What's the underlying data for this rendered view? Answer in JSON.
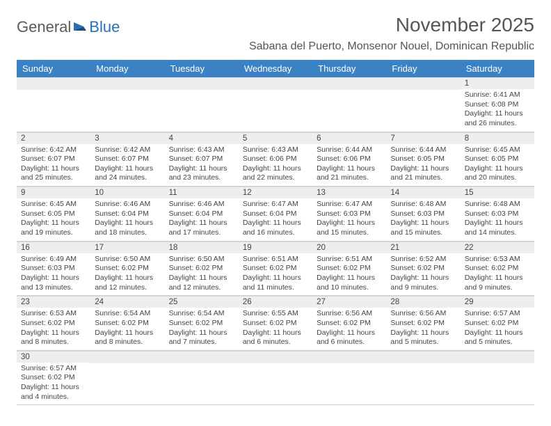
{
  "logo": {
    "text1": "General",
    "text2": "Blue"
  },
  "title": "November 2025",
  "location": "Sabana del Puerto, Monsenor Nouel, Dominican Republic",
  "colors": {
    "header_bg": "#3b82c4",
    "header_fg": "#ffffff",
    "daynum_bg": "#eeeeee",
    "text": "#444444",
    "border": "#d0d0d0"
  },
  "day_names": [
    "Sunday",
    "Monday",
    "Tuesday",
    "Wednesday",
    "Thursday",
    "Friday",
    "Saturday"
  ],
  "weeks": [
    [
      {
        "day": "",
        "lines": []
      },
      {
        "day": "",
        "lines": []
      },
      {
        "day": "",
        "lines": []
      },
      {
        "day": "",
        "lines": []
      },
      {
        "day": "",
        "lines": []
      },
      {
        "day": "",
        "lines": []
      },
      {
        "day": "1",
        "lines": [
          "Sunrise: 6:41 AM",
          "Sunset: 6:08 PM",
          "Daylight: 11 hours and 26 minutes."
        ]
      }
    ],
    [
      {
        "day": "2",
        "lines": [
          "Sunrise: 6:42 AM",
          "Sunset: 6:07 PM",
          "Daylight: 11 hours and 25 minutes."
        ]
      },
      {
        "day": "3",
        "lines": [
          "Sunrise: 6:42 AM",
          "Sunset: 6:07 PM",
          "Daylight: 11 hours and 24 minutes."
        ]
      },
      {
        "day": "4",
        "lines": [
          "Sunrise: 6:43 AM",
          "Sunset: 6:07 PM",
          "Daylight: 11 hours and 23 minutes."
        ]
      },
      {
        "day": "5",
        "lines": [
          "Sunrise: 6:43 AM",
          "Sunset: 6:06 PM",
          "Daylight: 11 hours and 22 minutes."
        ]
      },
      {
        "day": "6",
        "lines": [
          "Sunrise: 6:44 AM",
          "Sunset: 6:06 PM",
          "Daylight: 11 hours and 21 minutes."
        ]
      },
      {
        "day": "7",
        "lines": [
          "Sunrise: 6:44 AM",
          "Sunset: 6:05 PM",
          "Daylight: 11 hours and 21 minutes."
        ]
      },
      {
        "day": "8",
        "lines": [
          "Sunrise: 6:45 AM",
          "Sunset: 6:05 PM",
          "Daylight: 11 hours and 20 minutes."
        ]
      }
    ],
    [
      {
        "day": "9",
        "lines": [
          "Sunrise: 6:45 AM",
          "Sunset: 6:05 PM",
          "Daylight: 11 hours and 19 minutes."
        ]
      },
      {
        "day": "10",
        "lines": [
          "Sunrise: 6:46 AM",
          "Sunset: 6:04 PM",
          "Daylight: 11 hours and 18 minutes."
        ]
      },
      {
        "day": "11",
        "lines": [
          "Sunrise: 6:46 AM",
          "Sunset: 6:04 PM",
          "Daylight: 11 hours and 17 minutes."
        ]
      },
      {
        "day": "12",
        "lines": [
          "Sunrise: 6:47 AM",
          "Sunset: 6:04 PM",
          "Daylight: 11 hours and 16 minutes."
        ]
      },
      {
        "day": "13",
        "lines": [
          "Sunrise: 6:47 AM",
          "Sunset: 6:03 PM",
          "Daylight: 11 hours and 15 minutes."
        ]
      },
      {
        "day": "14",
        "lines": [
          "Sunrise: 6:48 AM",
          "Sunset: 6:03 PM",
          "Daylight: 11 hours and 15 minutes."
        ]
      },
      {
        "day": "15",
        "lines": [
          "Sunrise: 6:48 AM",
          "Sunset: 6:03 PM",
          "Daylight: 11 hours and 14 minutes."
        ]
      }
    ],
    [
      {
        "day": "16",
        "lines": [
          "Sunrise: 6:49 AM",
          "Sunset: 6:03 PM",
          "Daylight: 11 hours and 13 minutes."
        ]
      },
      {
        "day": "17",
        "lines": [
          "Sunrise: 6:50 AM",
          "Sunset: 6:02 PM",
          "Daylight: 11 hours and 12 minutes."
        ]
      },
      {
        "day": "18",
        "lines": [
          "Sunrise: 6:50 AM",
          "Sunset: 6:02 PM",
          "Daylight: 11 hours and 12 minutes."
        ]
      },
      {
        "day": "19",
        "lines": [
          "Sunrise: 6:51 AM",
          "Sunset: 6:02 PM",
          "Daylight: 11 hours and 11 minutes."
        ]
      },
      {
        "day": "20",
        "lines": [
          "Sunrise: 6:51 AM",
          "Sunset: 6:02 PM",
          "Daylight: 11 hours and 10 minutes."
        ]
      },
      {
        "day": "21",
        "lines": [
          "Sunrise: 6:52 AM",
          "Sunset: 6:02 PM",
          "Daylight: 11 hours and 9 minutes."
        ]
      },
      {
        "day": "22",
        "lines": [
          "Sunrise: 6:53 AM",
          "Sunset: 6:02 PM",
          "Daylight: 11 hours and 9 minutes."
        ]
      }
    ],
    [
      {
        "day": "23",
        "lines": [
          "Sunrise: 6:53 AM",
          "Sunset: 6:02 PM",
          "Daylight: 11 hours and 8 minutes."
        ]
      },
      {
        "day": "24",
        "lines": [
          "Sunrise: 6:54 AM",
          "Sunset: 6:02 PM",
          "Daylight: 11 hours and 8 minutes."
        ]
      },
      {
        "day": "25",
        "lines": [
          "Sunrise: 6:54 AM",
          "Sunset: 6:02 PM",
          "Daylight: 11 hours and 7 minutes."
        ]
      },
      {
        "day": "26",
        "lines": [
          "Sunrise: 6:55 AM",
          "Sunset: 6:02 PM",
          "Daylight: 11 hours and 6 minutes."
        ]
      },
      {
        "day": "27",
        "lines": [
          "Sunrise: 6:56 AM",
          "Sunset: 6:02 PM",
          "Daylight: 11 hours and 6 minutes."
        ]
      },
      {
        "day": "28",
        "lines": [
          "Sunrise: 6:56 AM",
          "Sunset: 6:02 PM",
          "Daylight: 11 hours and 5 minutes."
        ]
      },
      {
        "day": "29",
        "lines": [
          "Sunrise: 6:57 AM",
          "Sunset: 6:02 PM",
          "Daylight: 11 hours and 5 minutes."
        ]
      }
    ],
    [
      {
        "day": "30",
        "lines": [
          "Sunrise: 6:57 AM",
          "Sunset: 6:02 PM",
          "Daylight: 11 hours and 4 minutes."
        ]
      },
      {
        "day": "",
        "lines": []
      },
      {
        "day": "",
        "lines": []
      },
      {
        "day": "",
        "lines": []
      },
      {
        "day": "",
        "lines": []
      },
      {
        "day": "",
        "lines": []
      },
      {
        "day": "",
        "lines": []
      }
    ]
  ]
}
